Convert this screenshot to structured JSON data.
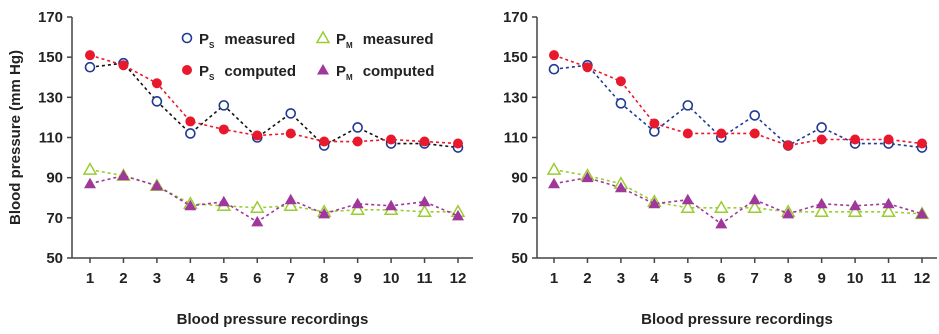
{
  "chart_data": [
    {
      "type": "line",
      "title": "",
      "xlabel": "Blood pressure  recordings",
      "ylabel": "Blood pressure (mm Hg)",
      "categories": [
        "1",
        "2",
        "3",
        "4",
        "5",
        "6",
        "7",
        "8",
        "9",
        "10",
        "11",
        "12"
      ],
      "ylim": [
        50,
        170
      ],
      "yticks": [
        "50",
        "70",
        "90",
        "110",
        "130",
        "150",
        "170"
      ],
      "grid": false,
      "legend_position": "top",
      "legend": [
        {
          "main": "P",
          "sub": "S",
          "text": "measured"
        },
        {
          "main": "P",
          "sub": "M",
          "text": "measured"
        },
        {
          "main": "P",
          "sub": "S",
          "text": "computed"
        },
        {
          "main": "P",
          "sub": "M",
          "text": "computed"
        }
      ],
      "series": [
        {
          "key": "ps_measured",
          "marker": "open-circle",
          "color": "#1f3a93",
          "line_color": "#111111",
          "values": [
            145,
            147,
            128,
            112,
            126,
            110,
            122,
            106,
            115,
            107,
            107,
            105
          ]
        },
        {
          "key": "ps_computed",
          "marker": "filled-circle",
          "color": "#e8192c",
          "line_color": "#e8192c",
          "values": [
            151,
            146,
            137,
            118,
            114,
            111,
            112,
            108,
            108,
            109,
            108,
            107
          ]
        },
        {
          "key": "pm_measured",
          "marker": "open-triangle",
          "color": "#9acd32",
          "line_color": "#9acd32",
          "values": [
            94,
            91,
            86,
            77,
            76,
            75,
            76,
            73,
            74,
            74,
            73,
            73
          ]
        },
        {
          "key": "pm_computed",
          "marker": "filled-triangle",
          "color": "#a0379b",
          "line_color": "#a0379b",
          "values": [
            87,
            91,
            86,
            76,
            78,
            68,
            79,
            72,
            77,
            76,
            78,
            71
          ]
        }
      ]
    },
    {
      "type": "line",
      "title": "",
      "xlabel": "Blood pressure  recordings",
      "ylabel": "",
      "categories": [
        "1",
        "2",
        "3",
        "4",
        "5",
        "6",
        "7",
        "8",
        "9",
        "10",
        "11",
        "12"
      ],
      "ylim": [
        50,
        170
      ],
      "yticks": [
        "50",
        "70",
        "90",
        "110",
        "130",
        "150",
        "170"
      ],
      "grid": false,
      "legend_position": "none",
      "legend": [],
      "series": [
        {
          "key": "ps_measured",
          "marker": "open-circle",
          "color": "#1f3a93",
          "line_color": "#1f3a93",
          "values": [
            144,
            146,
            127,
            113,
            126,
            110,
            121,
            106,
            115,
            107,
            107,
            105
          ]
        },
        {
          "key": "ps_computed",
          "marker": "filled-circle",
          "color": "#e8192c",
          "line_color": "#e8192c",
          "values": [
            151,
            145,
            138,
            117,
            112,
            112,
            112,
            106,
            109,
            109,
            109,
            107
          ]
        },
        {
          "key": "pm_measured",
          "marker": "open-triangle",
          "color": "#9acd32",
          "line_color": "#9acd32",
          "values": [
            94,
            91,
            87,
            78,
            75,
            75,
            75,
            73,
            73,
            73,
            73,
            72
          ]
        },
        {
          "key": "pm_computed",
          "marker": "filled-triangle",
          "color": "#a0379b",
          "line_color": "#a0379b",
          "values": [
            87,
            90,
            85,
            77,
            79,
            67,
            79,
            72,
            77,
            76,
            77,
            72
          ]
        }
      ]
    }
  ]
}
